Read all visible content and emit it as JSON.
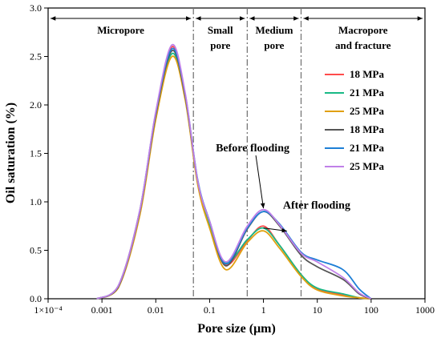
{
  "chart_data": {
    "type": "line",
    "xlabel": "Pore size (μm)",
    "ylabel": "Oil saturation (%)",
    "x_scale": "log",
    "xlim": [
      0.0001,
      1000
    ],
    "ylim": [
      0,
      3.0
    ],
    "x_ticks": [
      {
        "value": 0.0001,
        "label": "1×10⁻⁴"
      },
      {
        "value": 0.001,
        "label": "0.001"
      },
      {
        "value": 0.01,
        "label": "0.01"
      },
      {
        "value": 0.1,
        "label": "0.1"
      },
      {
        "value": 1,
        "label": "1"
      },
      {
        "value": 10,
        "label": "10"
      },
      {
        "value": 100,
        "label": "100"
      },
      {
        "value": 1000,
        "label": "1000"
      }
    ],
    "y_ticks": [
      {
        "value": 0,
        "label": "0.0"
      },
      {
        "value": 0.5,
        "label": "0.5"
      },
      {
        "value": 1.0,
        "label": "1.0"
      },
      {
        "value": 1.5,
        "label": "1.5"
      },
      {
        "value": 2.0,
        "label": "2.0"
      },
      {
        "value": 2.5,
        "label": "2.5"
      },
      {
        "value": 3.0,
        "label": "3.0"
      }
    ],
    "boundaries": [
      0.05,
      0.5,
      5
    ],
    "regions": [
      {
        "lines": [
          "Micropore"
        ],
        "from": 0.0001,
        "to": 0.05
      },
      {
        "lines": [
          "Small",
          "pore"
        ],
        "from": 0.05,
        "to": 0.5
      },
      {
        "lines": [
          "Medium",
          "pore"
        ],
        "from": 0.5,
        "to": 5
      },
      {
        "lines": [
          "Macropore",
          "and fracture"
        ],
        "from": 5,
        "to": 1000
      }
    ],
    "annotations": [
      {
        "text": "Before flooding",
        "anchor_x": 1.0,
        "anchor_y": 0.9,
        "label_x": 0.13,
        "label_y": 1.52
      },
      {
        "text": "After flooding",
        "anchor_x": 1.0,
        "anchor_y": 0.73,
        "label_x": 2.3,
        "label_y": 0.93
      }
    ],
    "legend_position": "right-center",
    "series": [
      {
        "name": "18 MPa",
        "color": "#ff4b4b",
        "x": [
          0.0008,
          0.002,
          0.005,
          0.01,
          0.02,
          0.035,
          0.06,
          0.1,
          0.2,
          0.5,
          1,
          2,
          5,
          10,
          30,
          60,
          100
        ],
        "y": [
          0,
          0.13,
          0.9,
          1.9,
          2.6,
          2.1,
          1.2,
          0.75,
          0.35,
          0.6,
          0.75,
          0.55,
          0.25,
          0.1,
          0.04,
          0.01,
          0
        ]
      },
      {
        "name": "21 MPa",
        "color": "#19b985",
        "x": [
          0.0008,
          0.002,
          0.005,
          0.01,
          0.02,
          0.035,
          0.06,
          0.1,
          0.2,
          0.5,
          1,
          2,
          5,
          10,
          30,
          60,
          100
        ],
        "y": [
          0,
          0.12,
          0.88,
          1.88,
          2.53,
          2.08,
          1.2,
          0.76,
          0.37,
          0.61,
          0.73,
          0.55,
          0.25,
          0.11,
          0.05,
          0.01,
          0
        ]
      },
      {
        "name": "25 MPa",
        "color": "#e0a010",
        "x": [
          0.0008,
          0.002,
          0.005,
          0.01,
          0.02,
          0.035,
          0.06,
          0.1,
          0.2,
          0.5,
          1,
          2,
          5,
          10,
          30,
          60,
          100
        ],
        "y": [
          0,
          0.11,
          0.85,
          1.85,
          2.5,
          2.06,
          1.18,
          0.73,
          0.3,
          0.58,
          0.7,
          0.52,
          0.23,
          0.09,
          0.03,
          0.01,
          0
        ]
      },
      {
        "name": "18 MPa",
        "color": "#555555",
        "x": [
          0.0008,
          0.002,
          0.005,
          0.01,
          0.02,
          0.035,
          0.06,
          0.1,
          0.2,
          0.5,
          1,
          2,
          5,
          10,
          30,
          60,
          100
        ],
        "y": [
          0,
          0.12,
          0.89,
          1.9,
          2.56,
          2.1,
          1.22,
          0.8,
          0.34,
          0.72,
          0.9,
          0.75,
          0.45,
          0.33,
          0.2,
          0.05,
          0
        ]
      },
      {
        "name": "21 MPa",
        "color": "#1e7fd6",
        "x": [
          0.0008,
          0.002,
          0.005,
          0.01,
          0.02,
          0.035,
          0.06,
          0.1,
          0.2,
          0.5,
          1,
          2,
          5,
          10,
          30,
          60,
          100
        ],
        "y": [
          0,
          0.13,
          0.9,
          1.92,
          2.58,
          2.12,
          1.23,
          0.8,
          0.36,
          0.73,
          0.9,
          0.77,
          0.48,
          0.4,
          0.3,
          0.1,
          0
        ]
      },
      {
        "name": "25 MPa",
        "color": "#c080e8",
        "x": [
          0.0008,
          0.002,
          0.005,
          0.01,
          0.02,
          0.035,
          0.06,
          0.1,
          0.2,
          0.5,
          1,
          2,
          5,
          10,
          30,
          60,
          100
        ],
        "y": [
          0,
          0.13,
          0.9,
          1.93,
          2.62,
          2.13,
          1.22,
          0.8,
          0.38,
          0.75,
          0.92,
          0.76,
          0.47,
          0.38,
          0.22,
          0.06,
          0
        ]
      }
    ]
  }
}
